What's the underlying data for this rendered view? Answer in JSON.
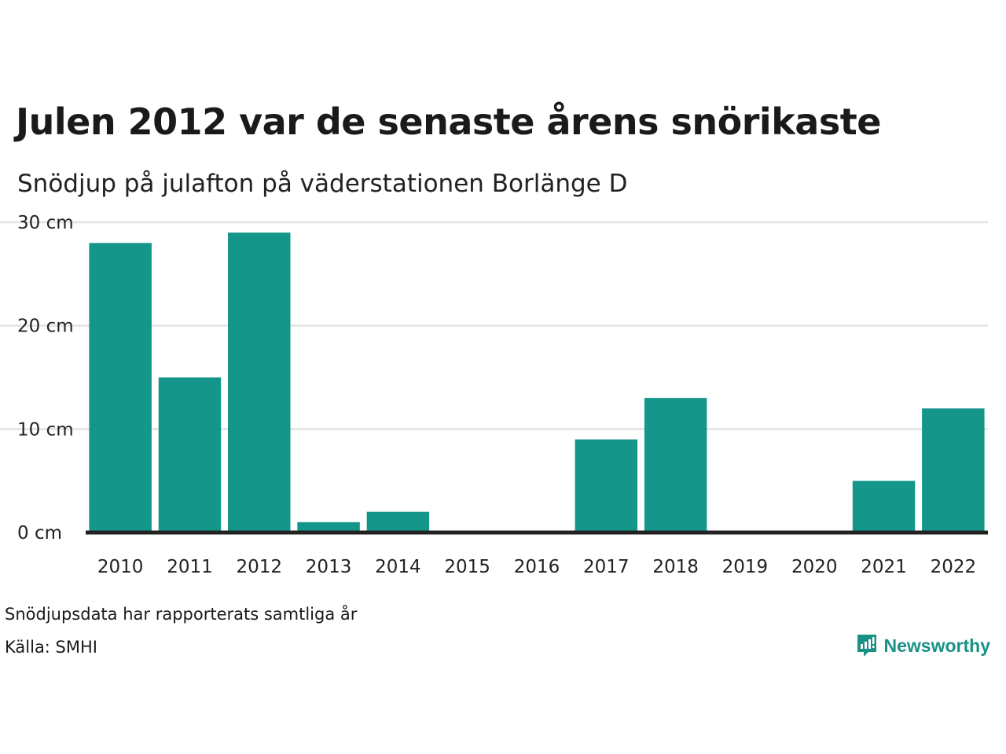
{
  "header": {
    "title": "Julen 2012 var de senaste årens snörikaste",
    "subtitle": "Snödjup på julafton på väderstationen Borlänge D"
  },
  "footer": {
    "note": "Snödjupsdata har rapporterats samtliga år",
    "source": "Källa: SMHI",
    "brand": "Newsworthy",
    "brand_icon": "newsworthy-logo-icon"
  },
  "colors": {
    "bar": "#14968a",
    "grid": "#e3e3e3",
    "baseline": "#222222",
    "brand": "#1a9186"
  },
  "chart_data": {
    "type": "bar",
    "categories": [
      "2010",
      "2011",
      "2012",
      "2013",
      "2014",
      "2015",
      "2016",
      "2017",
      "2018",
      "2019",
      "2020",
      "2021",
      "2022"
    ],
    "values": [
      28,
      15,
      29,
      1,
      2,
      0,
      0,
      9,
      13,
      0,
      0,
      5,
      12
    ],
    "ylim": [
      0,
      30
    ],
    "yticks": [
      0,
      10,
      20,
      30
    ],
    "ytick_labels": [
      "0 cm",
      "10 cm",
      "20 cm",
      "30 cm"
    ],
    "grid": true,
    "legend": "none"
  }
}
